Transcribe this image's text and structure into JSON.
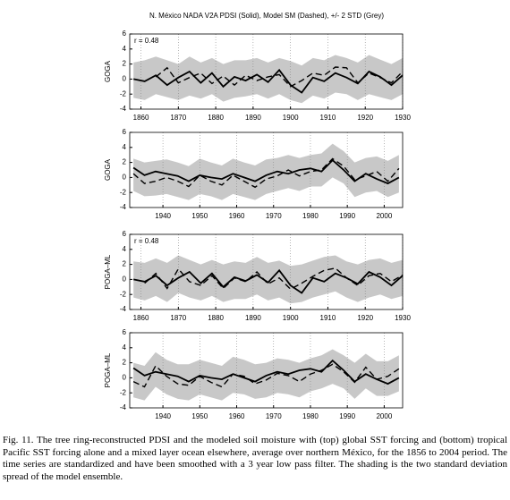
{
  "figure_title": "N. México NADA V2A PDSI (Solid), Model SM (Dashed), +/- 2 STD (Grey)",
  "caption": "Fig. 11. The tree ring-reconstructed PDSI and the modeled soil moisture with (top) global SST forcing and (bottom) tropical Pacific SST forcing alone and a mixed layer ocean elsewhere, average over northern México, for the 1856 to 2004 period. The time series are standardized and have been smoothed with a 3 year low pass filter. The shading is the two standard deviation spread of the model ensemble.",
  "chart_data": [
    {
      "type": "line",
      "ylabel": "GOGA",
      "annotation": "r = 0.48",
      "band_color": "#c8c8c8",
      "line_color": "#000000",
      "grid": true,
      "xlim": [
        1857,
        1930
      ],
      "ylim": [
        -4,
        6
      ],
      "xticks": [
        1860,
        1870,
        1880,
        1890,
        1900,
        1910,
        1920,
        1930
      ],
      "yticks": [
        -4,
        -2,
        0,
        2,
        4,
        6
      ],
      "x": [
        1858,
        1861,
        1864,
        1867,
        1870,
        1873,
        1876,
        1879,
        1882,
        1885,
        1888,
        1891,
        1894,
        1897,
        1900,
        1903,
        1906,
        1909,
        1912,
        1915,
        1918,
        1921,
        1924,
        1927,
        1930
      ],
      "pdsi": [
        0,
        -0.3,
        0.5,
        -0.8,
        0.2,
        1.0,
        -0.5,
        0.8,
        -1.0,
        0.3,
        -0.2,
        0.6,
        -0.4,
        1.2,
        -0.8,
        -1.8,
        0.2,
        -0.3,
        0.8,
        0.2,
        -0.6,
        1.0,
        0.3,
        -0.8,
        0.5
      ],
      "model_sm": [
        null,
        null,
        0.3,
        1.5,
        -0.5,
        0.2,
        0.8,
        -0.6,
        0.4,
        -0.8,
        0.5,
        -0.2,
        0.3,
        0.6,
        -1.0,
        -0.2,
        0.8,
        0.5,
        1.6,
        1.5,
        -0.5,
        0.8,
        0.2,
        -0.5,
        1.0
      ],
      "band_upper": [
        2.2,
        2.5,
        3,
        2.5,
        2,
        3,
        2.2,
        2.8,
        2,
        2.5,
        2.5,
        2.8,
        2.2,
        2.8,
        2.4,
        1.8,
        2.8,
        2.5,
        3.2,
        2.8,
        2.2,
        3.2,
        2.6,
        2,
        2.8
      ],
      "band_lower": [
        -2.5,
        -2.8,
        -2,
        -2.4,
        -2.8,
        -2.2,
        -2.6,
        -2,
        -3,
        -2.5,
        -2.3,
        -2,
        -2.6,
        -2,
        -2.8,
        -3.2,
        -2.2,
        -2.6,
        -1.8,
        -2,
        -2.8,
        -2,
        -2.4,
        -2.8,
        -2
      ]
    },
    {
      "type": "line",
      "ylabel": "GOGA",
      "band_color": "#c8c8c8",
      "line_color": "#000000",
      "grid": true,
      "xlim": [
        1931,
        2005
      ],
      "ylim": [
        -4,
        6
      ],
      "xticks": [
        1940,
        1950,
        1960,
        1970,
        1980,
        1990,
        2000
      ],
      "yticks": [
        -4,
        -2,
        0,
        2,
        4,
        6
      ],
      "x": [
        1932,
        1935,
        1938,
        1941,
        1944,
        1947,
        1950,
        1953,
        1956,
        1959,
        1962,
        1965,
        1968,
        1971,
        1974,
        1977,
        1980,
        1983,
        1986,
        1989,
        1992,
        1995,
        1998,
        2001,
        2004
      ],
      "pdsi": [
        1.3,
        0.3,
        0.8,
        0.5,
        0.2,
        -0.5,
        0.3,
        0,
        -0.2,
        0.5,
        0,
        -0.5,
        0.3,
        0.8,
        0.5,
        1.0,
        1.2,
        0.8,
        2.3,
        1.0,
        -0.5,
        0.5,
        -0.2,
        -0.8,
        0
      ],
      "model_sm": [
        0.5,
        -0.8,
        -0.5,
        0,
        -0.5,
        -1.2,
        0.3,
        -0.5,
        -1.0,
        0.3,
        -0.5,
        -1.3,
        -0.2,
        0.2,
        1.0,
        0.2,
        0.8,
        1.0,
        2.5,
        1.5,
        -0.3,
        0.2,
        0.8,
        -0.5,
        1.2
      ],
      "band_upper": [
        2.5,
        2,
        2.2,
        2.4,
        2,
        1.5,
        2.5,
        2,
        1.6,
        2.5,
        2,
        1.6,
        2.4,
        2.6,
        3,
        2.6,
        3,
        3.2,
        4.5,
        3.5,
        2,
        2.6,
        2.8,
        2.2,
        3
      ],
      "band_lower": [
        -1.8,
        -2.5,
        -2.4,
        -2.2,
        -2.6,
        -3,
        -2.2,
        -2.5,
        -3,
        -2.2,
        -2.6,
        -3,
        -2.2,
        -1.8,
        -1.4,
        -1.8,
        -1.2,
        -1.2,
        0,
        -0.8,
        -2.6,
        -2,
        -1.8,
        -2.6,
        -2
      ]
    },
    {
      "type": "line",
      "ylabel": "POGA–ML",
      "annotation": "r = 0.48",
      "band_color": "#c8c8c8",
      "line_color": "#000000",
      "grid": true,
      "xlim": [
        1857,
        1930
      ],
      "ylim": [
        -4,
        6
      ],
      "xticks": [
        1860,
        1870,
        1880,
        1890,
        1900,
        1910,
        1920,
        1930
      ],
      "yticks": [
        -4,
        -2,
        0,
        2,
        4,
        6
      ],
      "x": [
        1858,
        1861,
        1864,
        1867,
        1870,
        1873,
        1876,
        1879,
        1882,
        1885,
        1888,
        1891,
        1894,
        1897,
        1900,
        1903,
        1906,
        1909,
        1912,
        1915,
        1918,
        1921,
        1924,
        1927,
        1930
      ],
      "pdsi": [
        0,
        -0.3,
        0.5,
        -0.8,
        0.2,
        1.0,
        -0.5,
        0.8,
        -1.0,
        0.3,
        -0.2,
        0.6,
        -0.4,
        1.2,
        -0.8,
        -1.8,
        0.2,
        -0.3,
        0.8,
        0.2,
        -0.6,
        1.0,
        0.3,
        -0.8,
        0.5
      ],
      "model_sm": [
        null,
        -0.5,
        0.8,
        -1.2,
        1.4,
        -0.3,
        -0.8,
        0.5,
        -1.2,
        0.2,
        -0.3,
        1.0,
        -0.6,
        0.2,
        -1.3,
        -0.5,
        0.4,
        1.2,
        1.5,
        0.2,
        -0.8,
        0.5,
        0.8,
        -0.3,
        0.6
      ],
      "band_upper": [
        2.4,
        2.2,
        2.8,
        2.2,
        3.2,
        2.6,
        2,
        2.6,
        2,
        2.4,
        2.2,
        3,
        2.2,
        2.5,
        1.8,
        2,
        2.5,
        3,
        3.2,
        2.4,
        2,
        2.6,
        2.8,
        2.2,
        2.6
      ],
      "band_lower": [
        -2.4,
        -2.8,
        -2.2,
        -3,
        -1.8,
        -2.4,
        -2.8,
        -2.2,
        -3,
        -2.6,
        -2.6,
        -2,
        -2.8,
        -2.4,
        -3.2,
        -3,
        -2.4,
        -2,
        -1.6,
        -2.4,
        -3,
        -2.4,
        -2,
        -2.6,
        -2.2
      ]
    },
    {
      "type": "line",
      "ylabel": "POGA–ML",
      "band_color": "#c8c8c8",
      "line_color": "#000000",
      "grid": true,
      "xlim": [
        1931,
        2005
      ],
      "ylim": [
        -4,
        6
      ],
      "xticks": [
        1940,
        1950,
        1960,
        1970,
        1980,
        1990,
        2000
      ],
      "yticks": [
        -4,
        -2,
        0,
        2,
        4,
        6
      ],
      "x": [
        1932,
        1935,
        1938,
        1941,
        1944,
        1947,
        1950,
        1953,
        1956,
        1959,
        1962,
        1965,
        1968,
        1971,
        1974,
        1977,
        1980,
        1983,
        1986,
        1989,
        1992,
        1995,
        1998,
        2001,
        2004
      ],
      "pdsi": [
        1.3,
        0.3,
        0.8,
        0.5,
        0.2,
        -0.5,
        0.3,
        0,
        -0.2,
        0.5,
        0,
        -0.5,
        0.3,
        0.8,
        0.5,
        1.0,
        1.2,
        0.8,
        2.3,
        1.0,
        -0.5,
        0.5,
        -0.2,
        -0.8,
        0
      ],
      "model_sm": [
        -0.5,
        -1.2,
        1.6,
        0.2,
        -0.8,
        -1.0,
        0.2,
        -0.6,
        -1.2,
        0.5,
        0.2,
        -0.8,
        -0.3,
        0.6,
        0.3,
        -0.5,
        0.5,
        1.0,
        1.8,
        0.8,
        -0.6,
        1.4,
        -0.2,
        0.2,
        1.2
      ],
      "band_upper": [
        2,
        1.6,
        3.4,
        2.4,
        1.8,
        1.8,
        2.4,
        2,
        1.6,
        2.8,
        2.4,
        1.8,
        2,
        2.6,
        2.4,
        2,
        2.6,
        3,
        3.8,
        3,
        2,
        3.2,
        2.2,
        2.2,
        3
      ],
      "band_lower": [
        -2.6,
        -3,
        -1.2,
        -2.2,
        -2.8,
        -3,
        -2.2,
        -2.6,
        -3,
        -2,
        -2.2,
        -2.8,
        -2.6,
        -2,
        -2.2,
        -2.6,
        -1.8,
        -1.4,
        -0.8,
        -1.4,
        -2.8,
        -1.4,
        -2.4,
        -2.4,
        -1.8
      ]
    }
  ]
}
